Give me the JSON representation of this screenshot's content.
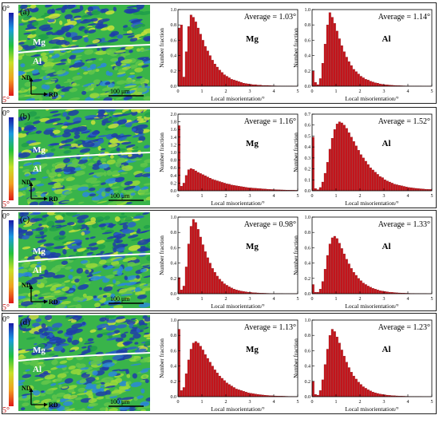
{
  "figure": {
    "rows": [
      {
        "panel_label": "(a)",
        "map": {
          "legend_top": "0°",
          "legend_bottom": "5°",
          "upper_label": "Mg",
          "lower_label": "Al",
          "axis_nd": "ND",
          "axis_rd": "RD",
          "scale_bar": "100 μm"
        },
        "hist_mg": {
          "average": "Average = 1.03°",
          "label": "Mg"
        },
        "hist_al": {
          "average": "Average = 1.14°",
          "label": "Al"
        }
      },
      {
        "panel_label": "(b)",
        "map": {
          "legend_top": "0°",
          "legend_bottom": "5°",
          "upper_label": "Mg",
          "lower_label": "Al",
          "axis_nd": "ND",
          "axis_rd": "RD",
          "scale_bar": "100 μm"
        },
        "hist_mg": {
          "average": "Average = 1.16°",
          "label": "Mg"
        },
        "hist_al": {
          "average": "Average = 1.52°",
          "label": "Al"
        }
      },
      {
        "panel_label": "(c)",
        "map": {
          "legend_top": "0°",
          "legend_bottom": "5°",
          "upper_label": "Mg",
          "lower_label": "Al",
          "axis_nd": "ND",
          "axis_rd": "RD",
          "scale_bar": "100 μm"
        },
        "hist_mg": {
          "average": "Average = 0.98°",
          "label": "Mg"
        },
        "hist_al": {
          "average": "Average = 1.33°",
          "label": "Al"
        }
      },
      {
        "panel_label": "(d)",
        "map": {
          "legend_top": "0°",
          "legend_bottom": "5°",
          "upper_label": "Mg",
          "lower_label": "Al",
          "axis_nd": "ND",
          "axis_rd": "RD",
          "scale_bar": "100 μm"
        },
        "hist_mg": {
          "average": "Average = 1.13°",
          "label": "Mg"
        },
        "hist_al": {
          "average": "Average = 1.23°",
          "label": "Al"
        }
      }
    ]
  },
  "colors": {
    "bar": "#c8161d",
    "bar_edge": "#7a0d10",
    "map_green": "#39b44a",
    "map_blue": "#1f3da8",
    "map_yellow": "#c8e23a"
  },
  "chart_data": [
    {
      "type": "bar",
      "title": "Average = 1.03°",
      "series_label": "Mg",
      "xlabel": "Local misorientation/°",
      "ylabel": "Number fraction",
      "xlim": [
        0,
        5
      ],
      "ylim": [
        0,
        1.0
      ],
      "x_ticks": [
        0,
        1,
        2,
        3,
        4,
        5
      ],
      "y_ticks": [
        0,
        0.2,
        0.4,
        0.6,
        0.8,
        1.0
      ],
      "x": [
        0.05,
        0.15,
        0.25,
        0.35,
        0.45,
        0.55,
        0.65,
        0.75,
        0.85,
        0.95,
        1.05,
        1.15,
        1.25,
        1.35,
        1.45,
        1.55,
        1.65,
        1.75,
        1.85,
        1.95,
        2.05,
        2.15,
        2.25,
        2.35,
        2.45,
        2.55,
        2.65,
        2.75,
        2.85,
        2.95,
        3.05,
        3.15,
        3.25,
        3.35,
        3.45,
        3.55,
        3.65,
        3.75,
        3.85,
        3.95,
        4.05,
        4.15,
        4.25,
        4.35,
        4.45,
        4.55,
        4.65,
        4.75,
        4.85,
        4.95
      ],
      "values": [
        0.76,
        0.8,
        0.12,
        0.45,
        0.78,
        0.93,
        0.9,
        0.84,
        0.76,
        0.68,
        0.6,
        0.52,
        0.46,
        0.4,
        0.34,
        0.29,
        0.25,
        0.21,
        0.18,
        0.15,
        0.13,
        0.11,
        0.09,
        0.08,
        0.07,
        0.06,
        0.05,
        0.04,
        0.035,
        0.03,
        0.025,
        0.02,
        0.02,
        0.015,
        0.015,
        0.01,
        0.01,
        0.01,
        0.008,
        0.006,
        0.005,
        0.004,
        0.004,
        0.003,
        0.003,
        0.002,
        0.002,
        0.002,
        0.001,
        0.001
      ]
    },
    {
      "type": "bar",
      "title": "Average = 1.14°",
      "series_label": "Al",
      "xlabel": "Local misorientation/°",
      "ylabel": "Number fraction",
      "xlim": [
        0,
        5
      ],
      "ylim": [
        0,
        1.0
      ],
      "x_ticks": [
        0,
        1,
        2,
        3,
        4,
        5
      ],
      "y_ticks": [
        0,
        0.2,
        0.4,
        0.6,
        0.8,
        1.0
      ],
      "x": [
        0.05,
        0.15,
        0.25,
        0.35,
        0.45,
        0.55,
        0.65,
        0.75,
        0.85,
        0.95,
        1.05,
        1.15,
        1.25,
        1.35,
        1.45,
        1.55,
        1.65,
        1.75,
        1.85,
        1.95,
        2.05,
        2.15,
        2.25,
        2.35,
        2.45,
        2.55,
        2.65,
        2.75,
        2.85,
        2.95,
        3.05,
        3.15,
        3.25,
        3.35,
        3.45,
        3.55,
        3.65,
        3.75,
        3.85,
        3.95,
        4.05,
        4.15,
        4.25,
        4.35,
        4.45,
        4.55,
        4.65,
        4.75,
        4.85,
        4.95
      ],
      "values": [
        0.2,
        0.05,
        0.02,
        0.1,
        0.3,
        0.55,
        0.8,
        0.96,
        0.9,
        0.82,
        0.72,
        0.62,
        0.53,
        0.45,
        0.38,
        0.32,
        0.27,
        0.22,
        0.19,
        0.16,
        0.13,
        0.11,
        0.09,
        0.08,
        0.065,
        0.055,
        0.045,
        0.04,
        0.03,
        0.025,
        0.02,
        0.018,
        0.015,
        0.012,
        0.01,
        0.009,
        0.008,
        0.006,
        0.005,
        0.004,
        0.004,
        0.003,
        0.003,
        0.002,
        0.002,
        0.002,
        0.001,
        0.001,
        0.001,
        0.001
      ]
    },
    {
      "type": "bar",
      "title": "Average = 1.16°",
      "series_label": "Mg",
      "xlabel": "Local misorientation/°",
      "ylabel": "Number fraction",
      "xlim": [
        0,
        5
      ],
      "ylim": [
        0,
        2.0
      ],
      "x_ticks": [
        0,
        1,
        2,
        3,
        4,
        5
      ],
      "y_ticks": [
        0,
        0.2,
        0.4,
        0.6,
        0.8,
        1.0,
        1.2,
        1.4,
        1.6,
        1.8,
        2.0
      ],
      "x": [
        0.05,
        0.15,
        0.25,
        0.35,
        0.45,
        0.55,
        0.65,
        0.75,
        0.85,
        0.95,
        1.05,
        1.15,
        1.25,
        1.35,
        1.45,
        1.55,
        1.65,
        1.75,
        1.85,
        1.95,
        2.05,
        2.15,
        2.25,
        2.35,
        2.45,
        2.55,
        2.65,
        2.75,
        2.85,
        2.95,
        3.05,
        3.15,
        3.25,
        3.35,
        3.45,
        3.55,
        3.65,
        3.75,
        3.85,
        3.95,
        4.05,
        4.15,
        4.25,
        4.35,
        4.45,
        4.55,
        4.65,
        4.75,
        4.85,
        4.95
      ],
      "values": [
        1.7,
        0.12,
        0.2,
        0.4,
        0.55,
        0.58,
        0.56,
        0.52,
        0.48,
        0.45,
        0.42,
        0.39,
        0.36,
        0.33,
        0.3,
        0.28,
        0.26,
        0.24,
        0.22,
        0.2,
        0.18,
        0.17,
        0.15,
        0.14,
        0.13,
        0.12,
        0.11,
        0.1,
        0.09,
        0.08,
        0.075,
        0.07,
        0.065,
        0.06,
        0.055,
        0.05,
        0.045,
        0.04,
        0.036,
        0.032,
        0.03,
        0.027,
        0.024,
        0.022,
        0.02,
        0.018,
        0.016,
        0.015,
        0.014,
        0.012
      ]
    },
    {
      "type": "bar",
      "title": "Average = 1.52°",
      "series_label": "Al",
      "xlabel": "Local misorientation/°",
      "ylabel": "Number fraction",
      "xlim": [
        0,
        5
      ],
      "ylim": [
        0,
        0.7
      ],
      "x_ticks": [
        0,
        1,
        2,
        3,
        4,
        5
      ],
      "y_ticks": [
        0,
        0.1,
        0.2,
        0.3,
        0.4,
        0.5,
        0.6,
        0.7
      ],
      "x": [
        0.05,
        0.15,
        0.25,
        0.35,
        0.45,
        0.55,
        0.65,
        0.75,
        0.85,
        0.95,
        1.05,
        1.15,
        1.25,
        1.35,
        1.45,
        1.55,
        1.65,
        1.75,
        1.85,
        1.95,
        2.05,
        2.15,
        2.25,
        2.35,
        2.45,
        2.55,
        2.65,
        2.75,
        2.85,
        2.95,
        3.05,
        3.15,
        3.25,
        3.35,
        3.45,
        3.55,
        3.65,
        3.75,
        3.85,
        3.95,
        4.05,
        4.15,
        4.25,
        4.35,
        4.45,
        4.55,
        4.65,
        4.75,
        4.85,
        4.95
      ],
      "values": [
        0.49,
        0.02,
        0.01,
        0.03,
        0.08,
        0.16,
        0.26,
        0.38,
        0.48,
        0.56,
        0.61,
        0.63,
        0.62,
        0.6,
        0.57,
        0.53,
        0.49,
        0.45,
        0.41,
        0.37,
        0.33,
        0.3,
        0.27,
        0.24,
        0.21,
        0.19,
        0.17,
        0.15,
        0.13,
        0.12,
        0.1,
        0.09,
        0.08,
        0.07,
        0.06,
        0.055,
        0.05,
        0.045,
        0.04,
        0.035,
        0.03,
        0.028,
        0.025,
        0.022,
        0.02,
        0.018,
        0.016,
        0.014,
        0.013,
        0.012
      ]
    },
    {
      "type": "bar",
      "title": "Average = 0.98°",
      "series_label": "Mg",
      "xlabel": "Local misorientation/°",
      "ylabel": "Number fraction",
      "xlim": [
        0,
        5
      ],
      "ylim": [
        0,
        1.0
      ],
      "x_ticks": [
        0,
        1,
        2,
        3,
        4,
        5
      ],
      "y_ticks": [
        0,
        0.2,
        0.4,
        0.6,
        0.8,
        1.0
      ],
      "x": [
        0.05,
        0.15,
        0.25,
        0.35,
        0.45,
        0.55,
        0.65,
        0.75,
        0.85,
        0.95,
        1.05,
        1.15,
        1.25,
        1.35,
        1.45,
        1.55,
        1.65,
        1.75,
        1.85,
        1.95,
        2.05,
        2.15,
        2.25,
        2.35,
        2.45,
        2.55,
        2.65,
        2.75,
        2.85,
        2.95,
        3.05,
        3.15,
        3.25,
        3.35,
        3.45,
        3.55,
        3.65,
        3.75,
        3.85,
        3.95,
        4.05,
        4.15,
        4.25,
        4.35,
        4.45,
        4.55,
        4.65,
        4.75,
        4.85,
        4.95
      ],
      "values": [
        0.21,
        0.05,
        0.1,
        0.35,
        0.65,
        0.88,
        0.97,
        0.93,
        0.84,
        0.74,
        0.64,
        0.55,
        0.47,
        0.4,
        0.33,
        0.28,
        0.23,
        0.19,
        0.16,
        0.13,
        0.11,
        0.09,
        0.075,
        0.06,
        0.05,
        0.042,
        0.035,
        0.03,
        0.025,
        0.02,
        0.017,
        0.014,
        0.012,
        0.01,
        0.008,
        0.007,
        0.006,
        0.005,
        0.004,
        0.003,
        0.003,
        0.002,
        0.002,
        0.002,
        0.001,
        0.001,
        0.001,
        0.001,
        0.001,
        0.001
      ]
    },
    {
      "type": "bar",
      "title": "Average = 1.33°",
      "series_label": "Al",
      "xlabel": "Local misorientation/°",
      "ylabel": "Number fraction",
      "xlim": [
        0,
        5
      ],
      "ylim": [
        0,
        1.0
      ],
      "x_ticks": [
        0,
        1,
        2,
        3,
        4,
        5
      ],
      "y_ticks": [
        0,
        0.2,
        0.4,
        0.6,
        0.8,
        1.0
      ],
      "x": [
        0.05,
        0.15,
        0.25,
        0.35,
        0.45,
        0.55,
        0.65,
        0.75,
        0.85,
        0.95,
        1.05,
        1.15,
        1.25,
        1.35,
        1.45,
        1.55,
        1.65,
        1.75,
        1.85,
        1.95,
        2.05,
        2.15,
        2.25,
        2.35,
        2.45,
        2.55,
        2.65,
        2.75,
        2.85,
        2.95,
        3.05,
        3.15,
        3.25,
        3.35,
        3.45,
        3.55,
        3.65,
        3.75,
        3.85,
        3.95,
        4.05,
        4.15,
        4.25,
        4.35,
        4.45,
        4.55,
        4.65,
        4.75,
        4.85,
        4.95
      ],
      "values": [
        0.12,
        0.02,
        0.02,
        0.06,
        0.16,
        0.32,
        0.5,
        0.65,
        0.73,
        0.75,
        0.72,
        0.66,
        0.59,
        0.52,
        0.45,
        0.39,
        0.33,
        0.28,
        0.24,
        0.2,
        0.17,
        0.14,
        0.12,
        0.1,
        0.085,
        0.07,
        0.06,
        0.05,
        0.04,
        0.035,
        0.03,
        0.025,
        0.02,
        0.018,
        0.015,
        0.012,
        0.01,
        0.009,
        0.008,
        0.006,
        0.005,
        0.004,
        0.004,
        0.003,
        0.003,
        0.002,
        0.002,
        0.002,
        0.001,
        0.001
      ]
    },
    {
      "type": "bar",
      "title": "Average = 1.13°",
      "series_label": "Mg",
      "xlabel": "Local misorientation/°",
      "ylabel": "Number fraction",
      "xlim": [
        0,
        5
      ],
      "ylim": [
        0,
        1.0
      ],
      "x_ticks": [
        0,
        1,
        2,
        3,
        4,
        5
      ],
      "y_ticks": [
        0,
        0.2,
        0.4,
        0.6,
        0.8,
        1.0
      ],
      "x": [
        0.05,
        0.15,
        0.25,
        0.35,
        0.45,
        0.55,
        0.65,
        0.75,
        0.85,
        0.95,
        1.05,
        1.15,
        1.25,
        1.35,
        1.45,
        1.55,
        1.65,
        1.75,
        1.85,
        1.95,
        2.05,
        2.15,
        2.25,
        2.35,
        2.45,
        2.55,
        2.65,
        2.75,
        2.85,
        2.95,
        3.05,
        3.15,
        3.25,
        3.35,
        3.45,
        3.55,
        3.65,
        3.75,
        3.85,
        3.95,
        4.05,
        4.15,
        4.25,
        4.35,
        4.45,
        4.55,
        4.65,
        4.75,
        4.85,
        4.95
      ],
      "values": [
        0.88,
        0.08,
        0.12,
        0.3,
        0.48,
        0.62,
        0.7,
        0.72,
        0.7,
        0.66,
        0.61,
        0.55,
        0.5,
        0.45,
        0.4,
        0.35,
        0.31,
        0.27,
        0.24,
        0.21,
        0.18,
        0.16,
        0.14,
        0.12,
        0.1,
        0.09,
        0.08,
        0.07,
        0.06,
        0.05,
        0.045,
        0.04,
        0.035,
        0.03,
        0.026,
        0.022,
        0.019,
        0.016,
        0.014,
        0.012,
        0.01,
        0.009,
        0.008,
        0.007,
        0.006,
        0.005,
        0.004,
        0.004,
        0.003,
        0.003
      ]
    },
    {
      "type": "bar",
      "title": "Average = 1.23°",
      "series_label": "Al",
      "xlabel": "Local misorientation/°",
      "ylabel": "Number fraction",
      "xlim": [
        0,
        5
      ],
      "ylim": [
        0,
        1.0
      ],
      "x_ticks": [
        0,
        1,
        2,
        3,
        4,
        5
      ],
      "y_ticks": [
        0,
        0.2,
        0.4,
        0.6,
        0.8,
        1.0
      ],
      "x": [
        0.05,
        0.15,
        0.25,
        0.35,
        0.45,
        0.55,
        0.65,
        0.75,
        0.85,
        0.95,
        1.05,
        1.15,
        1.25,
        1.35,
        1.45,
        1.55,
        1.65,
        1.75,
        1.85,
        1.95,
        2.05,
        2.15,
        2.25,
        2.35,
        2.45,
        2.55,
        2.65,
        2.75,
        2.85,
        2.95,
        3.05,
        3.15,
        3.25,
        3.35,
        3.45,
        3.55,
        3.65,
        3.75,
        3.85,
        3.95,
        4.05,
        4.15,
        4.25,
        4.35,
        4.45,
        4.55,
        4.65,
        4.75,
        4.85,
        4.95
      ],
      "values": [
        0.2,
        0.03,
        0.02,
        0.08,
        0.22,
        0.42,
        0.62,
        0.8,
        0.88,
        0.85,
        0.78,
        0.7,
        0.61,
        0.53,
        0.45,
        0.38,
        0.32,
        0.27,
        0.23,
        0.19,
        0.16,
        0.13,
        0.11,
        0.09,
        0.075,
        0.06,
        0.05,
        0.042,
        0.035,
        0.03,
        0.025,
        0.02,
        0.017,
        0.014,
        0.012,
        0.01,
        0.008,
        0.007,
        0.006,
        0.005,
        0.004,
        0.003,
        0.003,
        0.002,
        0.002,
        0.002,
        0.001,
        0.001,
        0.001,
        0.001
      ]
    }
  ]
}
